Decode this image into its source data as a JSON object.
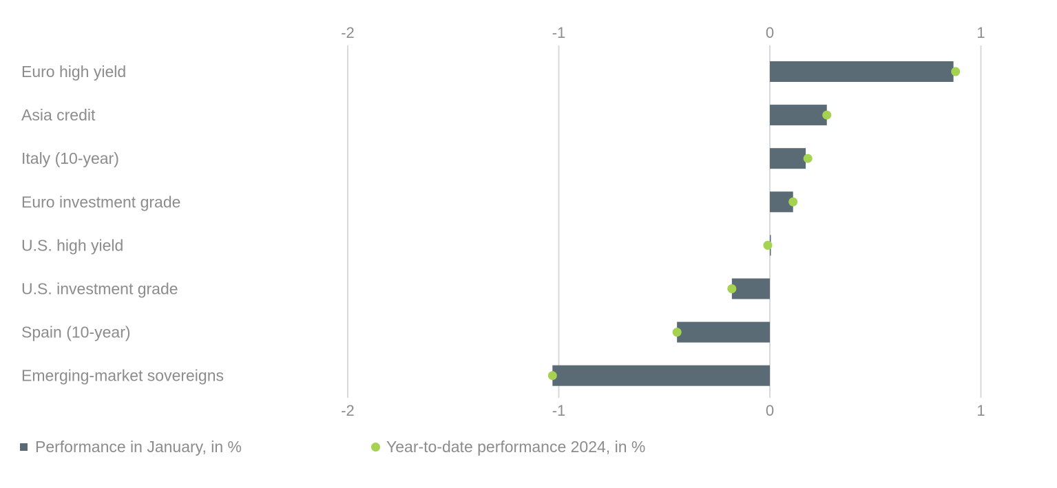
{
  "chart_data": {
    "type": "bar",
    "orientation": "horizontal",
    "categories": [
      "Euro high yield",
      "Asia credit",
      "Italy (10-year)",
      "Euro investment grade",
      "U.S. high yield",
      "U.S. investment grade",
      "Spain (10-year)",
      "Emerging-market sovereigns"
    ],
    "series": [
      {
        "name": "Performance in January, in %",
        "kind": "bar",
        "color": "#5a6b76",
        "values": [
          0.87,
          0.27,
          0.17,
          0.11,
          0.0,
          -0.18,
          -0.44,
          -1.03
        ]
      },
      {
        "name": "Year-to-date performance 2024, in %",
        "kind": "dot",
        "color": "#a6d252",
        "values": [
          0.88,
          0.27,
          0.18,
          0.11,
          -0.01,
          -0.18,
          -0.44,
          -1.03
        ]
      }
    ],
    "xlim": [
      -2,
      1
    ],
    "xticks": [
      -2,
      -1,
      0,
      1
    ],
    "xtick_labels": [
      "-2",
      "-1",
      "0",
      "1"
    ],
    "grid": true,
    "legend_position": "bottom-left",
    "title": "",
    "xlabel": "",
    "ylabel": ""
  },
  "legend": {
    "bar_label": "Performance in January, in %",
    "dot_label": "Year-to-date performance 2024, in %"
  },
  "colors": {
    "bar": "#5a6b76",
    "dot": "#a6d252",
    "grid": "#d9d9d9",
    "text": "#8c8c8c"
  }
}
